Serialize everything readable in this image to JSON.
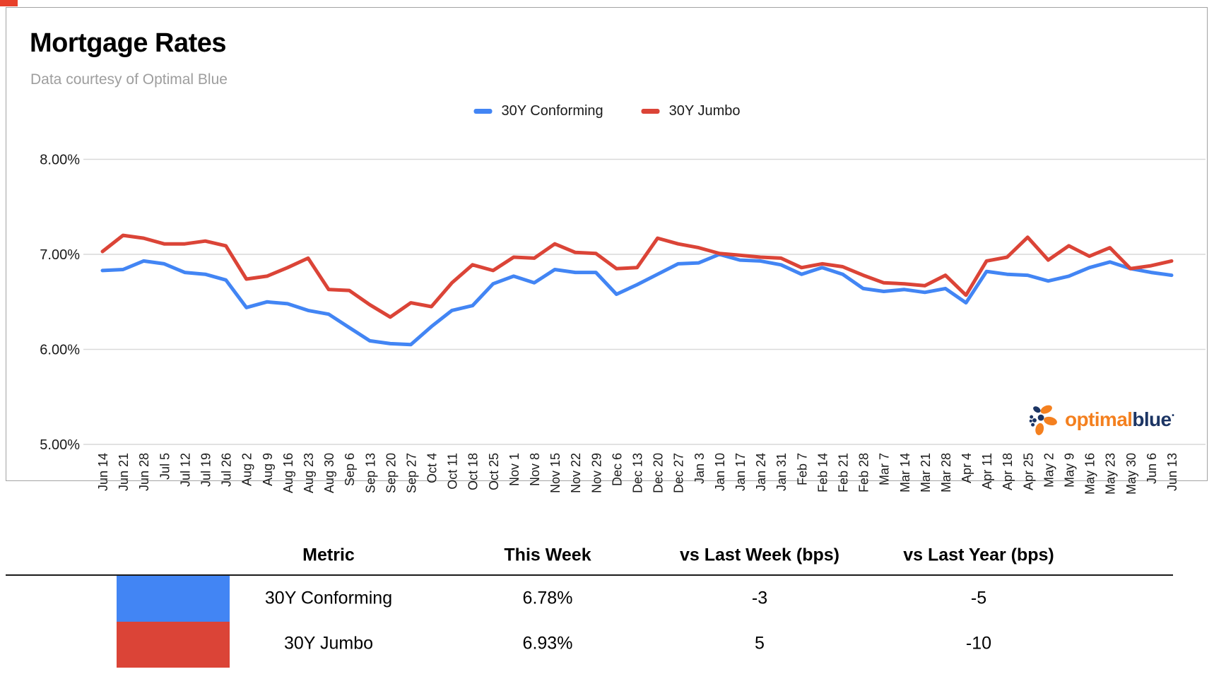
{
  "page": {
    "corner_accent_color": "#e8402a"
  },
  "chart_card": {
    "title": "Mortgage Rates",
    "subtitle": "Data courtesy of Optimal Blue",
    "logo": {
      "word1": "optimal",
      "word2": "blue",
      "mark": "·",
      "orange": "#f4801f",
      "navy": "#1c3564"
    }
  },
  "chart_data": {
    "type": "line",
    "title": "Mortgage Rates",
    "grid": true,
    "gridline_color": "#d9d9d9",
    "legend_position": "top-center",
    "x_label_rotation": -90,
    "ylim": [
      5.0,
      8.0
    ],
    "y_ticks": [
      "8.00%",
      "7.00%",
      "6.00%",
      "5.00%"
    ],
    "y_tick_values": [
      8.0,
      7.0,
      6.0,
      5.0
    ],
    "x_labels": [
      "Jun 14",
      "Jun 21",
      "Jun 28",
      "Jul 5",
      "Jul 12",
      "Jul 19",
      "Jul 26",
      "Aug 2",
      "Aug 9",
      "Aug 16",
      "Aug 23",
      "Aug 30",
      "Sep 6",
      "Sep 13",
      "Sep 20",
      "Sep 27",
      "Oct 4",
      "Oct 11",
      "Oct 18",
      "Oct 25",
      "Nov 1",
      "Nov 8",
      "Nov 15",
      "Nov 22",
      "Nov 29",
      "Dec 6",
      "Dec 13",
      "Dec 20",
      "Dec 27",
      "Jan 3",
      "Jan 10",
      "Jan 17",
      "Jan 24",
      "Jan 31",
      "Feb 7",
      "Feb 14",
      "Feb 21",
      "Feb 28",
      "Mar 7",
      "Mar 14",
      "Mar 21",
      "Mar 28",
      "Apr 4",
      "Apr 11",
      "Apr 18",
      "Apr 25",
      "May 2",
      "May 9",
      "May 16",
      "May 23",
      "May 30",
      "Jun 6",
      "Jun 13"
    ],
    "series": [
      {
        "name": "30Y Conforming",
        "color": "#4285f4",
        "values": [
          6.83,
          6.84,
          6.93,
          6.9,
          6.81,
          6.79,
          6.73,
          6.44,
          6.5,
          6.48,
          6.41,
          6.37,
          6.23,
          6.09,
          6.06,
          6.05,
          6.24,
          6.41,
          6.46,
          6.69,
          6.77,
          6.7,
          6.84,
          6.81,
          6.81,
          6.58,
          6.68,
          6.79,
          6.9,
          6.91,
          7.0,
          6.94,
          6.93,
          6.89,
          6.79,
          6.86,
          6.79,
          6.64,
          6.61,
          6.63,
          6.6,
          6.64,
          6.49,
          6.82,
          6.79,
          6.78,
          6.72,
          6.77,
          6.86,
          6.92,
          6.85,
          6.81,
          6.78
        ]
      },
      {
        "name": "30Y Jumbo",
        "color": "#db4437",
        "values": [
          7.03,
          7.2,
          7.17,
          7.11,
          7.11,
          7.14,
          7.09,
          6.74,
          6.77,
          6.86,
          6.96,
          6.63,
          6.62,
          6.47,
          6.34,
          6.49,
          6.45,
          6.7,
          6.89,
          6.83,
          6.97,
          6.96,
          7.11,
          7.02,
          7.01,
          6.85,
          6.86,
          7.17,
          7.11,
          7.07,
          7.01,
          6.99,
          6.97,
          6.96,
          6.86,
          6.9,
          6.87,
          6.78,
          6.7,
          6.69,
          6.67,
          6.78,
          6.57,
          6.93,
          6.97,
          7.18,
          6.94,
          7.09,
          6.98,
          7.07,
          6.85,
          6.88,
          6.93
        ]
      }
    ]
  },
  "table": {
    "headers": [
      "Metric",
      "This Week",
      "vs Last Week (bps)",
      "vs Last Year (bps)"
    ],
    "rows": [
      {
        "metric": "30Y Conforming",
        "this_week": "6.78%",
        "vs_last_week": "-3",
        "vs_last_year": "-5",
        "swatch_color": "#4285f4"
      },
      {
        "metric": "30Y Jumbo",
        "this_week": "6.93%",
        "vs_last_week": "5",
        "vs_last_year": "-10",
        "swatch_color": "#db4437"
      }
    ]
  }
}
